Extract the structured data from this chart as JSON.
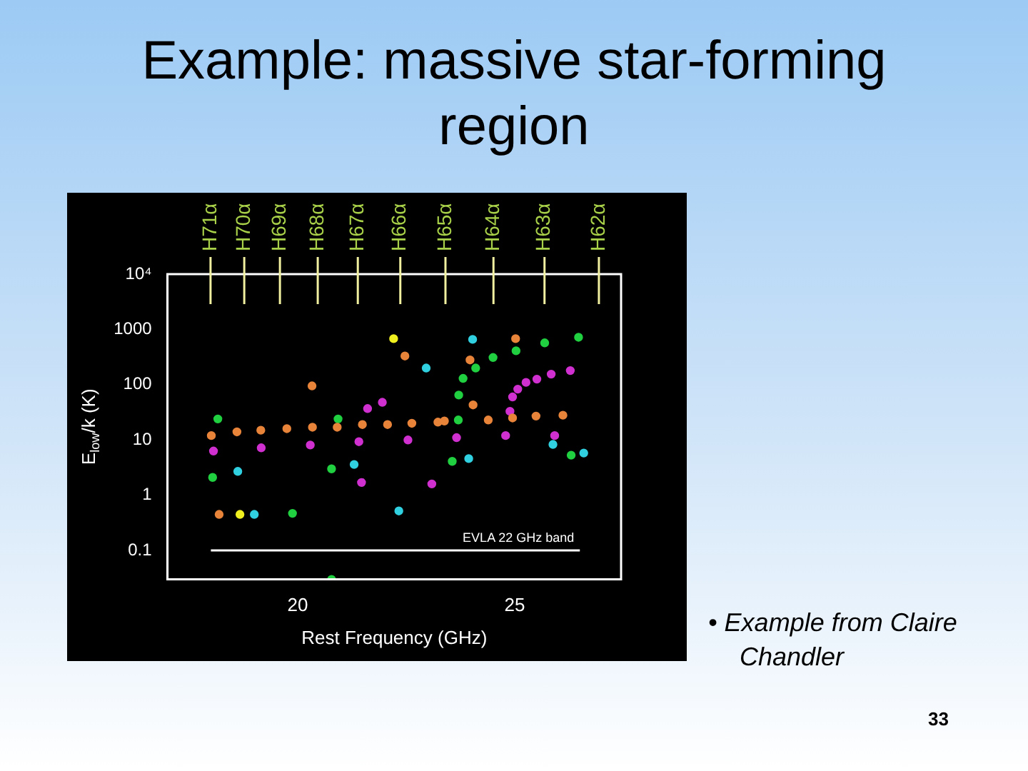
{
  "chart_data": {
    "type": "scatter",
    "title": "Example: massive star-forming region",
    "xlabel": "Rest Frequency (GHz)",
    "ylabel": "E$_{low}$/k (K)",
    "xlim": [
      17,
      27.45
    ],
    "xticks": [
      20,
      25
    ],
    "ylim": [
      0.03,
      10000
    ],
    "log": "y",
    "yticks": [
      0.1,
      1,
      10,
      100,
      1000,
      {
        "value": 10000,
        "label": "10⁴"
      }
    ],
    "grid": false,
    "legend": false,
    "marker": "circle",
    "series": [
      {
        "color": "#e8843a",
        "x": [
          22.47,
          20.33,
          23.97,
          25.02,
          18.01,
          18.6,
          19.15,
          19.75,
          20.34,
          20.91,
          21.49,
          22.07,
          22.63,
          23.23,
          23.38,
          24.04,
          24.39,
          24.95,
          25.49,
          26.11,
          18.19
        ],
        "values": [
          330,
          95,
          280,
          680,
          12,
          14,
          15,
          16,
          17,
          17,
          19,
          19,
          20,
          21,
          22,
          43,
          23,
          25,
          27,
          28,
          0.45
        ]
      },
      {
        "color": "#d030d0",
        "x": [
          24.89,
          24.95,
          25.07,
          25.26,
          25.51,
          25.84,
          26.28,
          18.06,
          19.16,
          20.29,
          21.41,
          21.95,
          21.61,
          22.54,
          23.66,
          24.79,
          25.92,
          21.47,
          23.09
        ],
        "values": [
          33,
          60,
          83,
          110,
          126,
          155,
          180,
          6.3,
          7.2,
          8.1,
          9.3,
          48,
          37,
          10,
          11,
          12,
          12,
          1.7,
          1.6
        ]
      },
      {
        "color": "#20d040",
        "x": [
          23.81,
          23.71,
          24.1,
          24.5,
          25.03,
          25.69,
          26.47,
          18.16,
          20.93,
          23.7,
          18.04,
          20.78,
          23.56,
          26.3,
          19.88,
          20.78
        ],
        "values": [
          130,
          65,
          200,
          310,
          410,
          570,
          720,
          24,
          24,
          23,
          2.1,
          3,
          4.1,
          5.3,
          0.47,
          0.03
        ]
      },
      {
        "color": "#30d0e0",
        "x": [
          22.96,
          24.03,
          25.88,
          18.62,
          21.3,
          23.94,
          26.59,
          19.0,
          22.33
        ],
        "values": [
          200,
          660,
          8.3,
          2.7,
          3.6,
          4.6,
          5.8,
          0.45,
          0.52
        ]
      },
      {
        "color": "#f0f020",
        "x": [
          22.21,
          18.67
        ],
        "values": [
          680,
          0.45
        ]
      },
      {
        "type": "line",
        "color": "#ffffff",
        "marker": "none",
        "x": [
          18,
          26.5
        ],
        "values": [
          0.1,
          0.1
        ]
      }
    ],
    "ref_lines": [
      {
        "axis": "x",
        "value": 17.992,
        "label": "H71α",
        "color": "#f0f0a0"
      },
      {
        "axis": "x",
        "value": 18.769,
        "label": "H70α",
        "color": "#f0f0a0"
      },
      {
        "axis": "x",
        "value": 19.591,
        "label": "H69α",
        "color": "#f0f0a0"
      },
      {
        "axis": "x",
        "value": 20.462,
        "label": "H68α",
        "color": "#f0f0a0"
      },
      {
        "axis": "x",
        "value": 21.385,
        "label": "H67α",
        "color": "#f0f0a0"
      },
      {
        "axis": "x",
        "value": 22.364,
        "label": "H66α",
        "color": "#f0f0a0"
      },
      {
        "axis": "x",
        "value": 23.404,
        "label": "H65α",
        "color": "#f0f0a0"
      },
      {
        "axis": "x",
        "value": 24.51,
        "label": "H64α",
        "color": "#f0f0a0"
      },
      {
        "axis": "x",
        "value": 25.686,
        "label": "H63α",
        "color": "#f0f0a0"
      },
      {
        "axis": "x",
        "value": 26.939,
        "label": "H62α",
        "color": "#f0f0a0"
      }
    ],
    "annotations": [
      "EVLA 22 GHz band",
      "• Example from Claire Chandler",
      "33"
    ]
  }
}
